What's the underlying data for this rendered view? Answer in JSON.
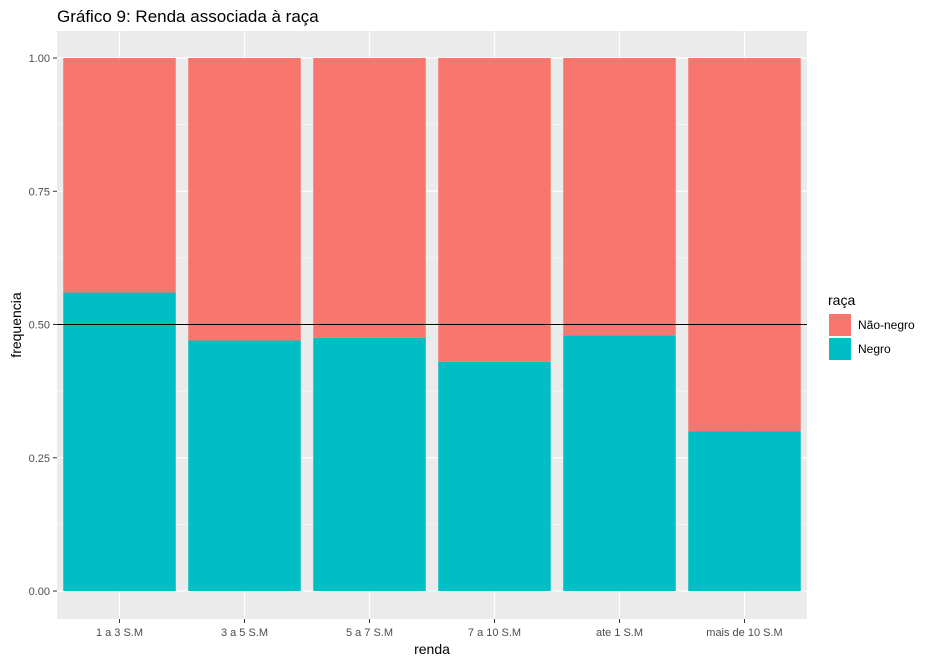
{
  "chart_data": {
    "type": "bar",
    "stacked": true,
    "title": "Gráfico 9: Renda associada à raça",
    "xlabel": "renda",
    "ylabel": "frequencia",
    "ylim": [
      0,
      1
    ],
    "yticks": [
      "0.00",
      "0.25",
      "0.50",
      "0.75",
      "1.00"
    ],
    "categories": [
      "1 a 3 S.M",
      "3 a 5 S.M",
      "5 a 7 S.M",
      "7 a 10 S.M",
      "ate 1 S.M",
      "mais de 10 S.M"
    ],
    "series": [
      {
        "name": "Negro",
        "color": "#00BFC4",
        "values": [
          0.56,
          0.47,
          0.475,
          0.43,
          0.48,
          0.3
        ]
      },
      {
        "name": "Não-negro",
        "color": "#F8766D",
        "values": [
          0.44,
          0.53,
          0.525,
          0.57,
          0.52,
          0.7
        ]
      }
    ],
    "reference_line": 0.5,
    "legend": {
      "title": "raça",
      "position": "right",
      "items": [
        {
          "label": "Não-negro",
          "color": "#F8766D"
        },
        {
          "label": "Negro",
          "color": "#00BFC4"
        }
      ]
    },
    "grid": true,
    "panel_background": "#EBEBEB"
  }
}
